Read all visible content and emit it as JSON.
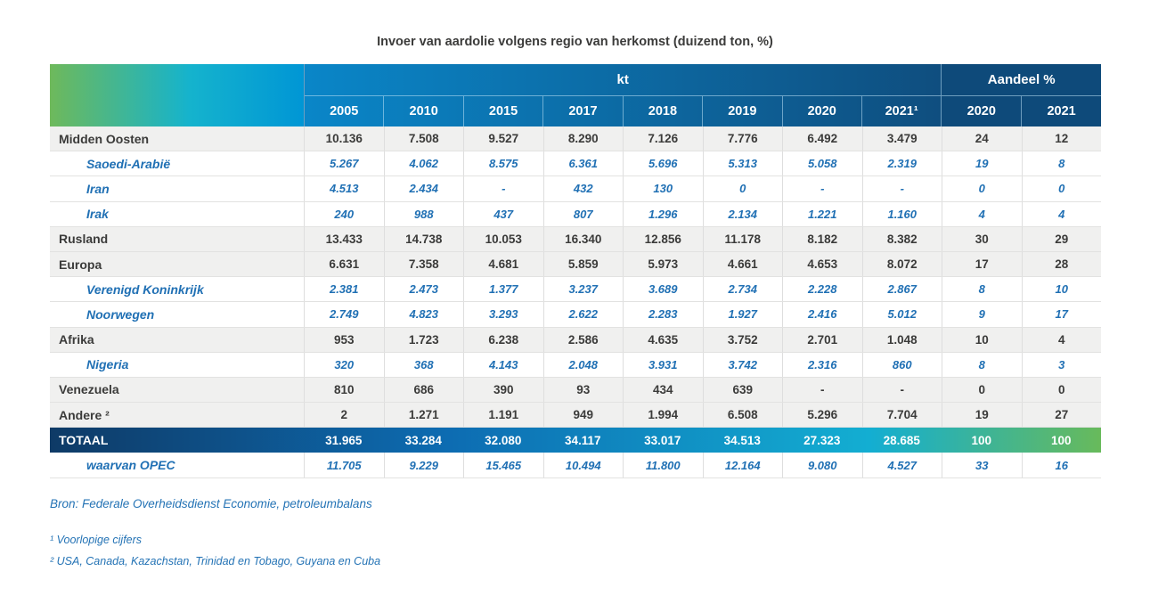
{
  "chart_data": {
    "type": "table",
    "title": "Invoer van aardolie volgens regio van herkomst (duizend ton, %)",
    "column_groups": [
      {
        "label": "kt",
        "span": 8
      },
      {
        "label": "Aandeel %",
        "span": 2
      }
    ],
    "columns": [
      "2005",
      "2010",
      "2015",
      "2017",
      "2018",
      "2019",
      "2020",
      "2021¹",
      "2020",
      "2021"
    ],
    "rows": [
      {
        "label": "Midden Oosten",
        "type": "region",
        "values": [
          "10.136",
          "7.508",
          "9.527",
          "8.290",
          "7.126",
          "7.776",
          "6.492",
          "3.479",
          "24",
          "12"
        ]
      },
      {
        "label": "Saoedi-Arabië",
        "type": "sub",
        "values": [
          "5.267",
          "4.062",
          "8.575",
          "6.361",
          "5.696",
          "5.313",
          "5.058",
          "2.319",
          "19",
          "8"
        ]
      },
      {
        "label": "Iran",
        "type": "sub",
        "values": [
          "4.513",
          "2.434",
          "-",
          "432",
          "130",
          "0",
          "-",
          "-",
          "0",
          "0"
        ]
      },
      {
        "label": "Irak",
        "type": "sub",
        "values": [
          "240",
          "988",
          "437",
          "807",
          "1.296",
          "2.134",
          "1.221",
          "1.160",
          "4",
          "4"
        ]
      },
      {
        "label": "Rusland",
        "type": "region",
        "values": [
          "13.433",
          "14.738",
          "10.053",
          "16.340",
          "12.856",
          "11.178",
          "8.182",
          "8.382",
          "30",
          "29"
        ]
      },
      {
        "label": "Europa",
        "type": "region",
        "values": [
          "6.631",
          "7.358",
          "4.681",
          "5.859",
          "5.973",
          "4.661",
          "4.653",
          "8.072",
          "17",
          "28"
        ]
      },
      {
        "label": "Verenigd Koninkrijk",
        "type": "sub",
        "values": [
          "2.381",
          "2.473",
          "1.377",
          "3.237",
          "3.689",
          "2.734",
          "2.228",
          "2.867",
          "8",
          "10"
        ]
      },
      {
        "label": "Noorwegen",
        "type": "sub",
        "values": [
          "2.749",
          "4.823",
          "3.293",
          "2.622",
          "2.283",
          "1.927",
          "2.416",
          "5.012",
          "9",
          "17"
        ]
      },
      {
        "label": "Afrika",
        "type": "region",
        "values": [
          "953",
          "1.723",
          "6.238",
          "2.586",
          "4.635",
          "3.752",
          "2.701",
          "1.048",
          "10",
          "4"
        ]
      },
      {
        "label": "Nigeria",
        "type": "sub",
        "values": [
          "320",
          "368",
          "4.143",
          "2.048",
          "3.931",
          "3.742",
          "2.316",
          "860",
          "8",
          "3"
        ]
      },
      {
        "label": "Venezuela",
        "type": "region",
        "values": [
          "810",
          "686",
          "390",
          "93",
          "434",
          "639",
          "-",
          "-",
          "0",
          "0"
        ]
      },
      {
        "label": "Andere ²",
        "type": "region",
        "values": [
          "2",
          "1.271",
          "1.191",
          "949",
          "1.994",
          "6.508",
          "5.296",
          "7.704",
          "19",
          "27"
        ]
      },
      {
        "label": "TOTAAL",
        "type": "total",
        "values": [
          "31.965",
          "33.284",
          "32.080",
          "34.117",
          "33.017",
          "34.513",
          "27.323",
          "28.685",
          "100",
          "100"
        ]
      },
      {
        "label": "waarvan OPEC",
        "type": "sub",
        "values": [
          "11.705",
          "9.229",
          "15.465",
          "10.494",
          "11.800",
          "12.164",
          "9.080",
          "4.527",
          "33",
          "16"
        ]
      }
    ]
  },
  "footnotes": {
    "source": "Bron: Federale Overheidsdienst Economie, petroleumbalans",
    "note1": "¹ Voorlopige cijfers",
    "note2": "² USA, Canada, Kazachstan, Trinidad en Tobago, Guyana en Cuba"
  },
  "colors": {
    "corner_green": "#6eb95b",
    "corner_teal": "#15b3cd",
    "corner_blue": "#0096d5",
    "kt_start": "#0a86c8",
    "kt_end": "#0f4e7f",
    "aandeel_bg": "#0e4a7a",
    "total_navy": "#0e3a66",
    "total_blue": "#0d6cb2",
    "total_cyan": "#13aed2",
    "total_green": "#68ba5b",
    "region_row_bg": "#f0f0ef",
    "region_text": "#3b3b3a",
    "sub_text": "#2070b4",
    "note_text": "#2473b5"
  }
}
